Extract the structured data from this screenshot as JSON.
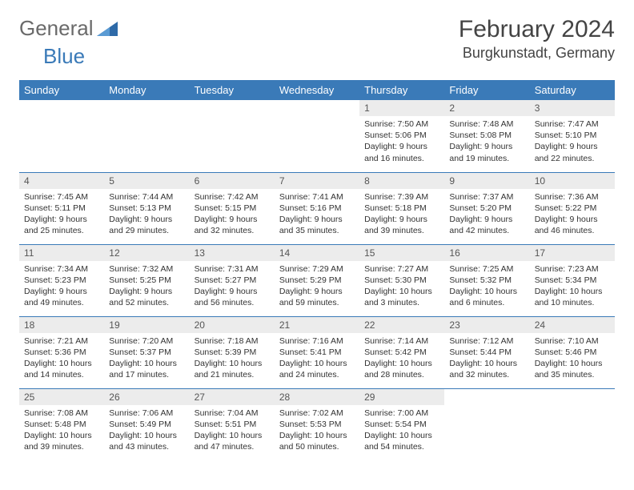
{
  "logo": {
    "word1": "General",
    "word2": "Blue",
    "icon_color": "#2e6aa8"
  },
  "title": "February 2024",
  "location": "Burgkunstadt, Germany",
  "colors": {
    "header_bg": "#3a7ab8",
    "header_fg": "#ffffff",
    "daynum_bg": "#ececec",
    "rule": "#3a7ab8",
    "text": "#333333"
  },
  "weekdays": [
    "Sunday",
    "Monday",
    "Tuesday",
    "Wednesday",
    "Thursday",
    "Friday",
    "Saturday"
  ],
  "weeks": [
    [
      null,
      null,
      null,
      null,
      {
        "n": "1",
        "sr": "7:50 AM",
        "ss": "5:06 PM",
        "dl": "9 hours and 16 minutes."
      },
      {
        "n": "2",
        "sr": "7:48 AM",
        "ss": "5:08 PM",
        "dl": "9 hours and 19 minutes."
      },
      {
        "n": "3",
        "sr": "7:47 AM",
        "ss": "5:10 PM",
        "dl": "9 hours and 22 minutes."
      }
    ],
    [
      {
        "n": "4",
        "sr": "7:45 AM",
        "ss": "5:11 PM",
        "dl": "9 hours and 25 minutes."
      },
      {
        "n": "5",
        "sr": "7:44 AM",
        "ss": "5:13 PM",
        "dl": "9 hours and 29 minutes."
      },
      {
        "n": "6",
        "sr": "7:42 AM",
        "ss": "5:15 PM",
        "dl": "9 hours and 32 minutes."
      },
      {
        "n": "7",
        "sr": "7:41 AM",
        "ss": "5:16 PM",
        "dl": "9 hours and 35 minutes."
      },
      {
        "n": "8",
        "sr": "7:39 AM",
        "ss": "5:18 PM",
        "dl": "9 hours and 39 minutes."
      },
      {
        "n": "9",
        "sr": "7:37 AM",
        "ss": "5:20 PM",
        "dl": "9 hours and 42 minutes."
      },
      {
        "n": "10",
        "sr": "7:36 AM",
        "ss": "5:22 PM",
        "dl": "9 hours and 46 minutes."
      }
    ],
    [
      {
        "n": "11",
        "sr": "7:34 AM",
        "ss": "5:23 PM",
        "dl": "9 hours and 49 minutes."
      },
      {
        "n": "12",
        "sr": "7:32 AM",
        "ss": "5:25 PM",
        "dl": "9 hours and 52 minutes."
      },
      {
        "n": "13",
        "sr": "7:31 AM",
        "ss": "5:27 PM",
        "dl": "9 hours and 56 minutes."
      },
      {
        "n": "14",
        "sr": "7:29 AM",
        "ss": "5:29 PM",
        "dl": "9 hours and 59 minutes."
      },
      {
        "n": "15",
        "sr": "7:27 AM",
        "ss": "5:30 PM",
        "dl": "10 hours and 3 minutes."
      },
      {
        "n": "16",
        "sr": "7:25 AM",
        "ss": "5:32 PM",
        "dl": "10 hours and 6 minutes."
      },
      {
        "n": "17",
        "sr": "7:23 AM",
        "ss": "5:34 PM",
        "dl": "10 hours and 10 minutes."
      }
    ],
    [
      {
        "n": "18",
        "sr": "7:21 AM",
        "ss": "5:36 PM",
        "dl": "10 hours and 14 minutes."
      },
      {
        "n": "19",
        "sr": "7:20 AM",
        "ss": "5:37 PM",
        "dl": "10 hours and 17 minutes."
      },
      {
        "n": "20",
        "sr": "7:18 AM",
        "ss": "5:39 PM",
        "dl": "10 hours and 21 minutes."
      },
      {
        "n": "21",
        "sr": "7:16 AM",
        "ss": "5:41 PM",
        "dl": "10 hours and 24 minutes."
      },
      {
        "n": "22",
        "sr": "7:14 AM",
        "ss": "5:42 PM",
        "dl": "10 hours and 28 minutes."
      },
      {
        "n": "23",
        "sr": "7:12 AM",
        "ss": "5:44 PM",
        "dl": "10 hours and 32 minutes."
      },
      {
        "n": "24",
        "sr": "7:10 AM",
        "ss": "5:46 PM",
        "dl": "10 hours and 35 minutes."
      }
    ],
    [
      {
        "n": "25",
        "sr": "7:08 AM",
        "ss": "5:48 PM",
        "dl": "10 hours and 39 minutes."
      },
      {
        "n": "26",
        "sr": "7:06 AM",
        "ss": "5:49 PM",
        "dl": "10 hours and 43 minutes."
      },
      {
        "n": "27",
        "sr": "7:04 AM",
        "ss": "5:51 PM",
        "dl": "10 hours and 47 minutes."
      },
      {
        "n": "28",
        "sr": "7:02 AM",
        "ss": "5:53 PM",
        "dl": "10 hours and 50 minutes."
      },
      {
        "n": "29",
        "sr": "7:00 AM",
        "ss": "5:54 PM",
        "dl": "10 hours and 54 minutes."
      },
      null,
      null
    ]
  ],
  "labels": {
    "sunrise": "Sunrise:",
    "sunset": "Sunset:",
    "daylight": "Daylight:"
  }
}
